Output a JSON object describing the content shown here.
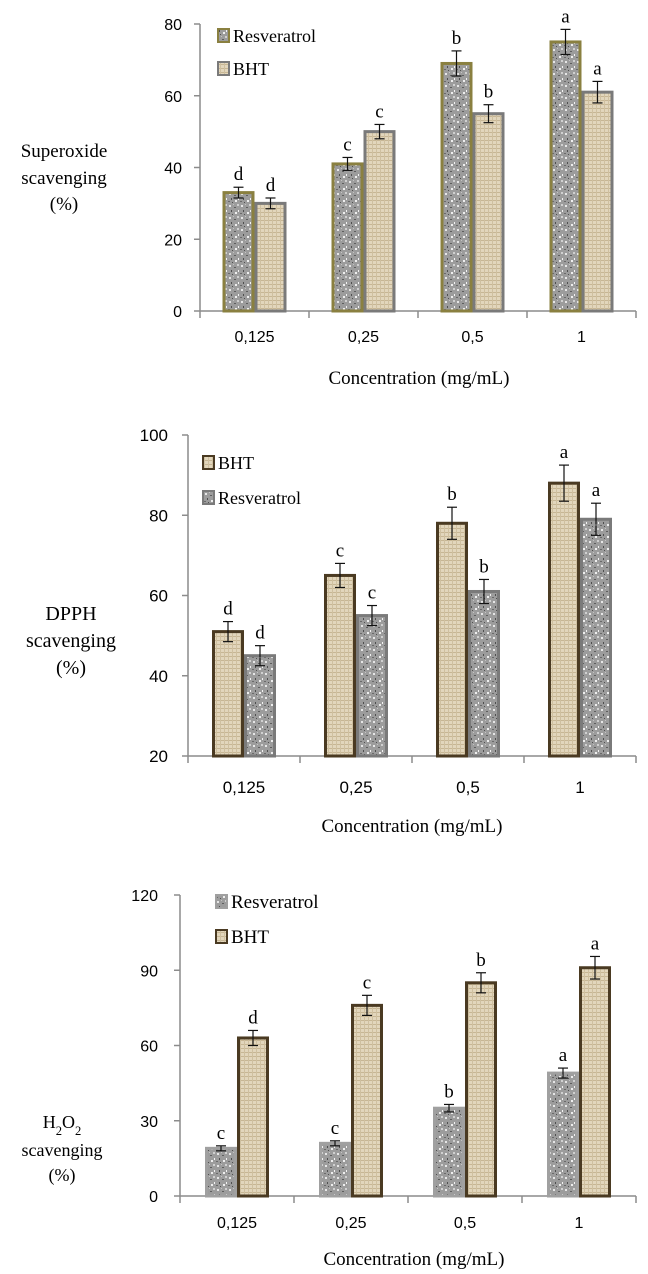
{
  "chart_data": [
    {
      "type": "bar",
      "title": "",
      "ylabel": "Superoxide scavenging (%)",
      "ylabel_lines": [
        "Superoxide",
        "scavenging",
        "(%)"
      ],
      "xlabel": "Concentration (mg/mL)",
      "categories": [
        "0,125",
        "0,25",
        "0,5",
        "1"
      ],
      "ylim": [
        0,
        80
      ],
      "yticks": [
        0,
        20,
        40,
        60,
        80
      ],
      "grid": false,
      "legend_position": "top-left",
      "series": [
        {
          "name": "Resveratrol",
          "values": [
            33,
            41,
            69,
            75
          ],
          "errors": [
            1.5,
            1.8,
            3.5,
            3.5
          ],
          "letters": [
            "d",
            "c",
            "b",
            "a"
          ],
          "fill": "speckled",
          "color": "#9a9a9a",
          "stroke": "#8a8040"
        },
        {
          "name": "BHT",
          "values": [
            30,
            50,
            55,
            61
          ],
          "errors": [
            1.5,
            2.0,
            2.5,
            3.0
          ],
          "letters": [
            "d",
            "c",
            "b",
            "a"
          ],
          "fill": "crosshatch",
          "color": "#ddd0b4",
          "stroke": "#7a7a7a"
        }
      ]
    },
    {
      "type": "bar",
      "title": "",
      "ylabel": "DPPH scavenging (%)",
      "ylabel_lines": [
        "DPPH",
        "scavenging",
        "(%)"
      ],
      "xlabel": "Concentration (mg/mL)",
      "categories": [
        "0,125",
        "0,25",
        "0,5",
        "1"
      ],
      "ylim": [
        20,
        100
      ],
      "yticks": [
        20,
        40,
        60,
        80,
        100
      ],
      "grid": false,
      "legend_position": "top-left",
      "series": [
        {
          "name": "BHT",
          "values": [
            51,
            65,
            78,
            88
          ],
          "errors": [
            2.5,
            3.0,
            4.0,
            4.5
          ],
          "letters": [
            "d",
            "c",
            "b",
            "a"
          ],
          "fill": "crosshatch",
          "color": "#ddd0b4",
          "stroke": "#4a3a22"
        },
        {
          "name": "Resveratrol",
          "values": [
            45,
            55,
            61,
            79
          ],
          "errors": [
            2.5,
            2.5,
            3.0,
            4.0
          ],
          "letters": [
            "d",
            "c",
            "b",
            "a"
          ],
          "fill": "speckled",
          "color": "#9a9a9a",
          "stroke": "#7a7a7a"
        }
      ]
    },
    {
      "type": "bar",
      "title": "",
      "ylabel": "H2O2 scavenging (%)",
      "ylabel_lines": [
        "H₂O₂",
        "scavenging",
        "(%)"
      ],
      "xlabel": "Concentration (mg/mL)",
      "categories": [
        "0,125",
        "0,25",
        "0,5",
        "1"
      ],
      "ylim": [
        0,
        120
      ],
      "yticks": [
        0,
        30,
        60,
        90,
        120
      ],
      "grid": false,
      "legend_position": "top-left",
      "series": [
        {
          "name": "Resveratrol",
          "values": [
            19,
            21,
            35,
            49
          ],
          "errors": [
            1.0,
            1.0,
            1.5,
            2.0
          ],
          "letters": [
            "c",
            "c",
            "b",
            "a"
          ],
          "fill": "speckled",
          "color": "#9a9a9a",
          "stroke": "#a0a0a0"
        },
        {
          "name": "BHT",
          "values": [
            63,
            76,
            85,
            91
          ],
          "errors": [
            3.0,
            4.0,
            4.0,
            4.5
          ],
          "letters": [
            "d",
            "c",
            "b",
            "a"
          ],
          "fill": "crosshatch",
          "color": "#ddd0b4",
          "stroke": "#4a3a22"
        }
      ]
    }
  ]
}
